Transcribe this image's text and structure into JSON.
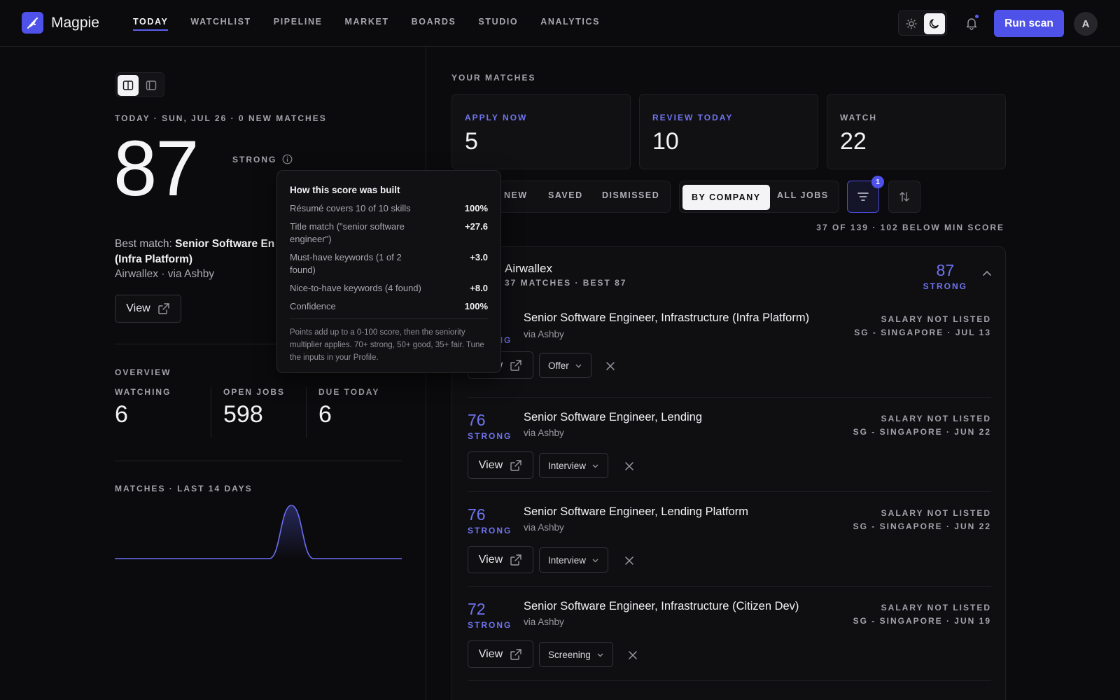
{
  "app": {
    "name": "Magpie"
  },
  "nav": [
    "TODAY",
    "WATCHLIST",
    "PIPELINE",
    "MARKET",
    "BOARDS",
    "STUDIO",
    "ANALYTICS"
  ],
  "header": {
    "run_scan": "Run scan",
    "avatar_initial": "A"
  },
  "today": {
    "date_line": "TODAY · SUN, JUL 26 · 0 NEW MATCHES",
    "score": "87",
    "score_label": "STRONG",
    "best_match_prefix": "Best match: ",
    "best_match_title": "Senior Software Engineer, Infrastructure (Infra Platform)",
    "best_match_title_visible": "Senior Software En",
    "best_match_title_line2": "(Infra Platform)",
    "best_match_company": "Airwallex · via Ashby",
    "view_label": "View"
  },
  "tooltip": {
    "title": "How this score was built",
    "rows": [
      {
        "label": "Résumé covers 10 of 10 skills",
        "value": "100%"
      },
      {
        "label": "Title match (\"senior software engineer\")",
        "value": "+27.6"
      },
      {
        "label": "Must-have keywords (1 of 2 found)",
        "value": "+3.0"
      },
      {
        "label": "Nice-to-have keywords (4 found)",
        "value": "+8.0"
      },
      {
        "label": "Confidence",
        "value": "100%"
      }
    ],
    "footer": "Points add up to a 0-100 score, then the seniority multiplier applies. 70+ strong, 50+ good, 35+ fair. Tune the inputs in your Profile."
  },
  "overview": {
    "label": "OVERVIEW",
    "stats": [
      {
        "label": "WATCHING",
        "value": "6"
      },
      {
        "label": "OPEN JOBS",
        "value": "598"
      },
      {
        "label": "DUE TODAY",
        "value": "6"
      }
    ]
  },
  "sparkline": {
    "label": "MATCHES · LAST 14 DAYS",
    "values": [
      0,
      0,
      0,
      0,
      0,
      0,
      0,
      0,
      37,
      0,
      0,
      0,
      0,
      0
    ]
  },
  "matches": {
    "label": "YOUR MATCHES",
    "cards": [
      {
        "label": "APPLY NOW",
        "value": "5",
        "accent": true
      },
      {
        "label": "REVIEW TODAY",
        "value": "10",
        "accent": true
      },
      {
        "label": "WATCH",
        "value": "22",
        "accent": false
      }
    ],
    "filter_tabs": [
      "NEW",
      "SAVED",
      "DISMISSED"
    ],
    "view_tabs": [
      "BY COMPANY",
      "ALL JOBS"
    ],
    "filter_badge": "1",
    "count_line": "37 OF 139 · 102 BELOW MIN SCORE"
  },
  "group": {
    "company": "Airwallex",
    "sub": "37 MATCHES · BEST 87",
    "score": "87",
    "score_label": "STRONG",
    "jobs": [
      {
        "score": "87",
        "label": "STRONG",
        "title": "Senior Software Engineer, Infrastructure (Infra Platform)",
        "via": "via Ashby",
        "salary": "SALARY NOT LISTED",
        "location": "SG - SINGAPORE · JUL 13",
        "status": "Offer"
      },
      {
        "score": "76",
        "label": "STRONG",
        "title": "Senior Software Engineer, Lending",
        "via": "via Ashby",
        "salary": "SALARY NOT LISTED",
        "location": "SG - SINGAPORE · JUN 22",
        "status": "Interview"
      },
      {
        "score": "76",
        "label": "STRONG",
        "title": "Senior Software Engineer, Lending Platform",
        "via": "via Ashby",
        "salary": "SALARY NOT LISTED",
        "location": "SG - SINGAPORE · JUN 22",
        "status": "Interview"
      },
      {
        "score": "72",
        "label": "STRONG",
        "title": "Senior Software Engineer, Infrastructure (Citizen Dev)",
        "via": "via Ashby",
        "salary": "SALARY NOT LISTED",
        "location": "SG - SINGAPORE · JUN 19",
        "status": "Screening"
      }
    ],
    "view_label": "View"
  },
  "colors": {
    "accent": "#5b5ff0",
    "background": "#0b0b0d",
    "card": "#111114"
  }
}
